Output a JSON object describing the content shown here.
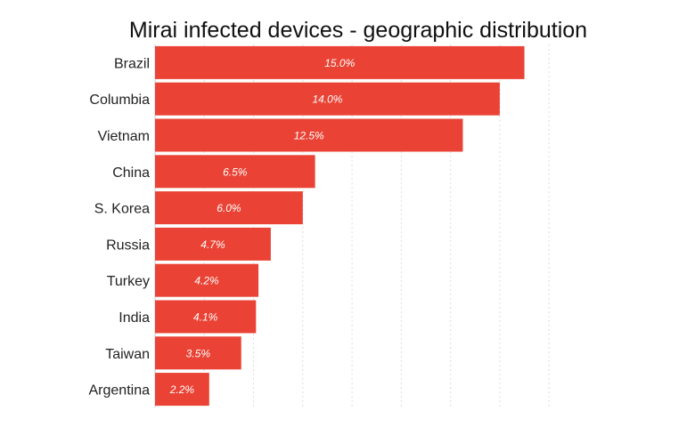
{
  "chart_data": {
    "type": "bar",
    "orientation": "horizontal",
    "title": "Mirai infected devices - geographic distribution",
    "xlabel": "",
    "ylabel": "",
    "categories": [
      "Brazil",
      "Columbia",
      "Vietnam",
      "China",
      "S. Korea",
      "Russia",
      "Turkey",
      "India",
      "Taiwan",
      "Argentina"
    ],
    "values": [
      15.0,
      14.0,
      12.5,
      6.5,
      6.0,
      4.7,
      4.2,
      4.1,
      3.5,
      2.2
    ],
    "data_labels": [
      "15.0%",
      "14.0%",
      "12.5%",
      "6.5%",
      "6.0%",
      "4.7%",
      "4.2%",
      "4.1%",
      "3.5%",
      "2.2%"
    ],
    "xlim": [
      0,
      16.5
    ],
    "grid": true,
    "legend": "none",
    "bar_color": "#EA4335",
    "label_color": "#ffffff"
  }
}
